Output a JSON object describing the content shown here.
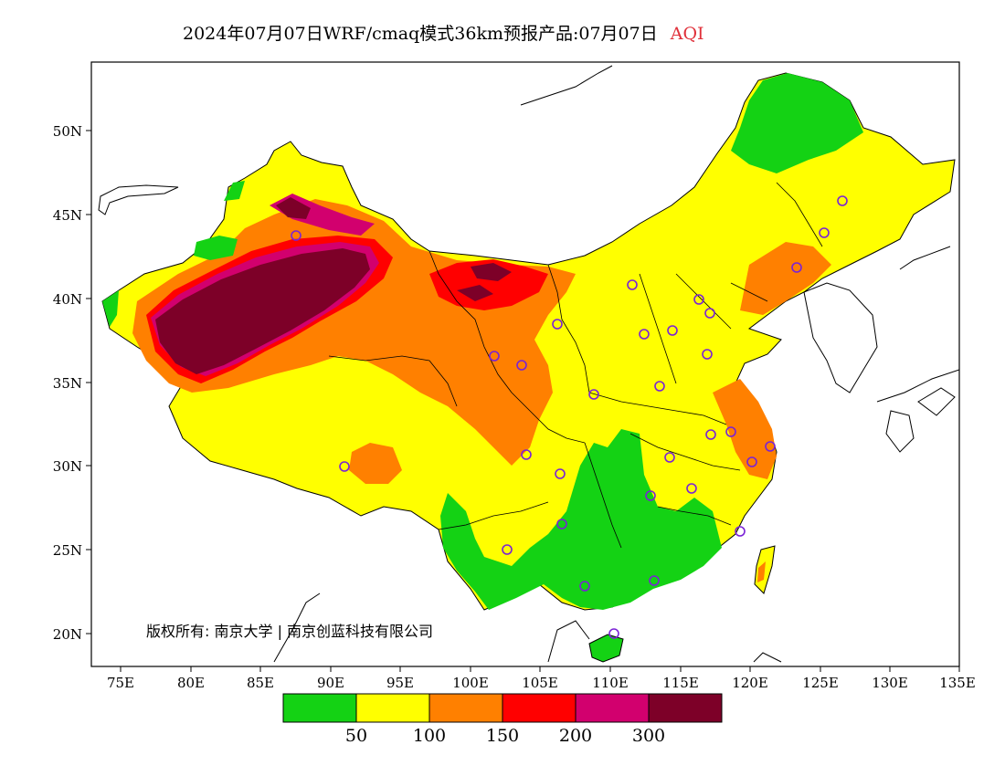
{
  "title": {
    "main": "2024年07月07日WRF/cmaq模式36km预报产品:07月07日",
    "variable": "AQI"
  },
  "map": {
    "lon_ticks": [
      "75E",
      "80E",
      "85E",
      "90E",
      "95E",
      "100E",
      "105E",
      "110E",
      "115E",
      "120E",
      "125E",
      "130E",
      "135E"
    ],
    "lat_ticks": [
      "20N",
      "25N",
      "30N",
      "35N",
      "40N",
      "45N",
      "50N"
    ],
    "copyright": "版权所有: 南京大学 | 南京创蓝科技有限公司"
  },
  "legend": {
    "colors": [
      "#14d214",
      "#ffff00",
      "#ff8000",
      "#ff0000",
      "#d2006e",
      "#7d0028"
    ],
    "labels": [
      "50",
      "100",
      "150",
      "200",
      "300"
    ]
  }
}
